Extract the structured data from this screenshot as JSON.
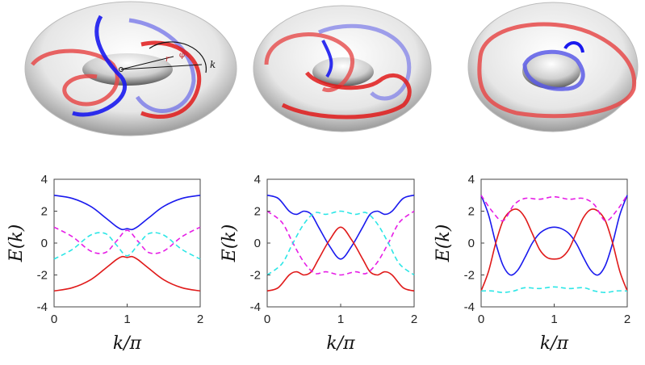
{
  "colors": {
    "blue": "#1a1aee",
    "red": "#e01a1a",
    "magenta": "#e61ee6",
    "cyan": "#2ce6e6",
    "torus_light": "#ffffff",
    "torus_dark": "#8a8a8a",
    "knot_red": "#e64a4a",
    "knot_blue": "#5a5ae6"
  },
  "illustrations": [
    {
      "name": "torus-knot-1",
      "labels": {
        "r": "r",
        "phi": "φ",
        "k": "k"
      }
    },
    {
      "name": "torus-knot-2"
    },
    {
      "name": "torus-knot-3"
    }
  ],
  "chart_data": [
    {
      "type": "line",
      "xlabel": "k/π",
      "ylabel": "E(k)",
      "xlim": [
        0,
        2
      ],
      "ylim": [
        -4,
        4
      ],
      "xticks": [
        "0",
        "1",
        "2"
      ],
      "yticks": [
        "-4",
        "-2",
        "0",
        "2",
        "4"
      ],
      "grid": false,
      "series": [
        {
          "color": "blue",
          "style": "solid",
          "x": [
            0,
            0.25,
            0.5,
            0.7,
            0.85,
            0.93,
            1.0,
            1.07,
            1.15,
            1.3,
            1.5,
            1.75,
            2.0
          ],
          "y": [
            3.0,
            2.8,
            2.3,
            1.6,
            1.05,
            0.85,
            0.9,
            0.85,
            1.05,
            1.6,
            2.3,
            2.8,
            3.0
          ]
        },
        {
          "color": "red",
          "style": "solid",
          "x": [
            0,
            0.25,
            0.5,
            0.7,
            0.85,
            0.93,
            1.0,
            1.07,
            1.15,
            1.3,
            1.5,
            1.75,
            2.0
          ],
          "y": [
            -3.0,
            -2.8,
            -2.3,
            -1.6,
            -1.05,
            -0.85,
            -0.9,
            -0.85,
            -1.05,
            -1.6,
            -2.3,
            -2.8,
            -3.0
          ]
        },
        {
          "color": "magenta",
          "style": "dashed",
          "x": [
            0,
            0.25,
            0.5,
            0.7,
            0.85,
            1.0,
            1.15,
            1.3,
            1.5,
            1.75,
            2.0
          ],
          "y": [
            1.0,
            0.4,
            -0.5,
            -0.6,
            0.1,
            0.8,
            0.1,
            -0.6,
            -0.5,
            0.4,
            1.0
          ]
        },
        {
          "color": "cyan",
          "style": "dashed",
          "x": [
            0,
            0.25,
            0.5,
            0.7,
            0.85,
            1.0,
            1.15,
            1.3,
            1.5,
            1.75,
            2.0
          ],
          "y": [
            -1.0,
            -0.4,
            0.5,
            0.6,
            -0.1,
            -0.8,
            -0.1,
            0.6,
            0.5,
            -0.4,
            -1.0
          ]
        }
      ]
    },
    {
      "type": "line",
      "xlabel": "k/π",
      "ylabel": "E(k)",
      "xlim": [
        0,
        2
      ],
      "ylim": [
        -4,
        4
      ],
      "xticks": [
        "0",
        "1",
        "2"
      ],
      "yticks": [
        "-4",
        "-2",
        "0",
        "2",
        "4"
      ],
      "grid": false,
      "series": [
        {
          "color": "blue",
          "style": "solid",
          "x": [
            0,
            0.15,
            0.3,
            0.4,
            0.5,
            0.6,
            0.7,
            0.85,
            1.0,
            1.15,
            1.3,
            1.4,
            1.5,
            1.6,
            1.7,
            1.85,
            2.0
          ],
          "y": [
            3.0,
            2.8,
            2.0,
            1.8,
            2.0,
            1.8,
            1.0,
            -0.2,
            -1.0,
            -0.2,
            1.0,
            1.8,
            2.0,
            1.8,
            2.0,
            2.8,
            3.0
          ]
        },
        {
          "color": "red",
          "style": "solid",
          "x": [
            0,
            0.15,
            0.3,
            0.4,
            0.5,
            0.6,
            0.7,
            0.85,
            1.0,
            1.15,
            1.3,
            1.4,
            1.5,
            1.6,
            1.7,
            1.85,
            2.0
          ],
          "y": [
            -3.0,
            -2.8,
            -2.0,
            -1.8,
            -2.0,
            -1.8,
            -1.0,
            0.2,
            1.0,
            0.2,
            -1.0,
            -1.8,
            -2.0,
            -1.8,
            -2.0,
            -2.8,
            -3.0
          ]
        },
        {
          "color": "magenta",
          "style": "dashed",
          "x": [
            0,
            0.2,
            0.35,
            0.5,
            0.65,
            0.8,
            1.0,
            1.2,
            1.35,
            1.5,
            1.65,
            1.8,
            2.0
          ],
          "y": [
            2.0,
            1.3,
            0.0,
            -1.2,
            -1.9,
            -1.8,
            -2.0,
            -1.8,
            -1.9,
            -1.2,
            0.0,
            1.3,
            2.0
          ]
        },
        {
          "color": "cyan",
          "style": "dashed",
          "x": [
            0,
            0.2,
            0.35,
            0.5,
            0.65,
            0.8,
            1.0,
            1.2,
            1.35,
            1.5,
            1.65,
            1.8,
            2.0
          ],
          "y": [
            -2.0,
            -1.3,
            0.0,
            1.2,
            1.9,
            1.8,
            2.0,
            1.8,
            1.9,
            1.2,
            0.0,
            -1.3,
            -2.0
          ]
        }
      ]
    },
    {
      "type": "line",
      "xlabel": "k/π",
      "ylabel": "E(k)",
      "xlim": [
        0,
        2
      ],
      "ylim": [
        -4,
        4
      ],
      "xticks": [
        "0",
        "1",
        "2"
      ],
      "yticks": [
        "-4",
        "-2",
        "0",
        "2",
        "4"
      ],
      "grid": false,
      "series": [
        {
          "color": "blue",
          "style": "solid",
          "x": [
            0,
            0.1,
            0.2,
            0.3,
            0.4,
            0.5,
            0.6,
            0.7,
            0.8,
            0.9,
            1.0,
            1.1,
            1.2,
            1.3,
            1.4,
            1.5,
            1.6,
            1.7,
            1.8,
            1.9,
            2.0
          ],
          "y": [
            3.0,
            1.8,
            0.0,
            -1.4,
            -2.0,
            -1.7,
            -0.9,
            0.0,
            0.6,
            0.9,
            1.0,
            0.9,
            0.6,
            0.0,
            -0.9,
            -1.7,
            -2.0,
            -1.4,
            0.0,
            1.8,
            3.0
          ]
        },
        {
          "color": "red",
          "style": "solid",
          "x": [
            0,
            0.1,
            0.2,
            0.3,
            0.4,
            0.5,
            0.6,
            0.7,
            0.8,
            0.9,
            1.0,
            1.1,
            1.2,
            1.3,
            1.4,
            1.5,
            1.6,
            1.7,
            1.8,
            1.9,
            2.0
          ],
          "y": [
            -3.0,
            -1.8,
            0.0,
            1.4,
            2.0,
            2.1,
            1.6,
            0.6,
            -0.4,
            -0.9,
            -1.0,
            -0.9,
            -0.4,
            0.6,
            1.6,
            2.1,
            2.0,
            1.4,
            0.0,
            -1.8,
            -3.0
          ]
        },
        {
          "color": "magenta",
          "style": "dashed",
          "x": [
            0,
            0.15,
            0.3,
            0.45,
            0.6,
            0.8,
            1.0,
            1.2,
            1.4,
            1.55,
            1.7,
            1.85,
            2.0
          ],
          "y": [
            3.0,
            2.0,
            1.4,
            2.4,
            2.8,
            2.75,
            2.9,
            2.75,
            2.8,
            2.4,
            1.4,
            2.0,
            3.0
          ]
        },
        {
          "color": "cyan",
          "style": "dashed",
          "x": [
            0,
            0.15,
            0.3,
            0.45,
            0.6,
            0.8,
            1.0,
            1.2,
            1.4,
            1.55,
            1.7,
            1.85,
            2.0
          ],
          "y": [
            -3.0,
            -3.0,
            -3.1,
            -3.0,
            -2.8,
            -2.85,
            -2.75,
            -2.85,
            -2.8,
            -3.0,
            -3.1,
            -3.0,
            -3.0
          ]
        }
      ]
    }
  ]
}
